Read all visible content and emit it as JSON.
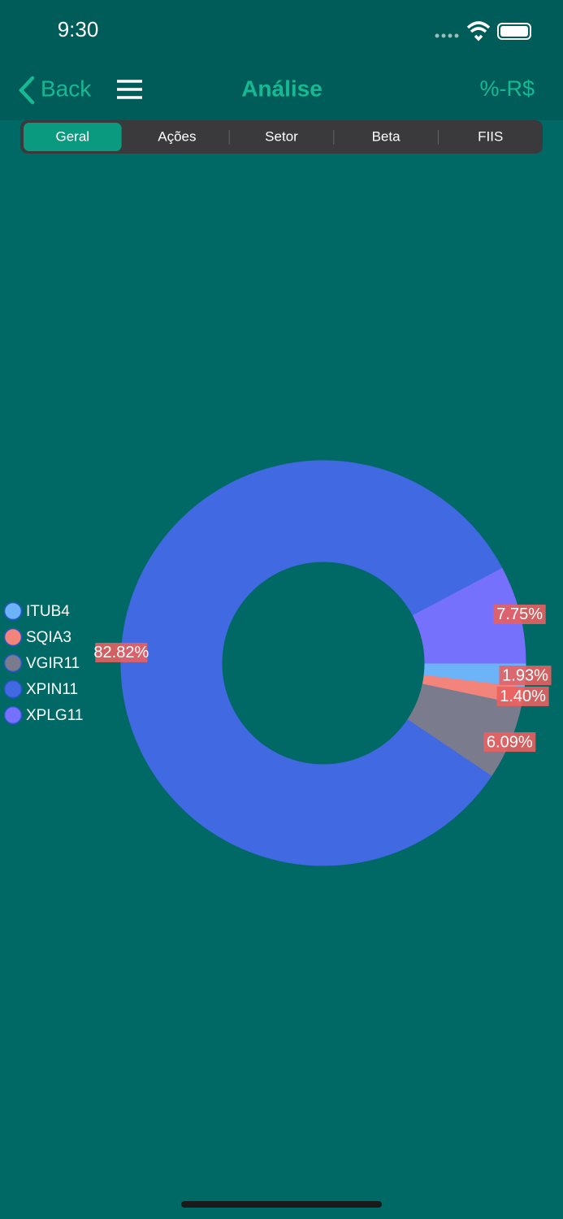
{
  "status_bar": {
    "time": "9:30"
  },
  "nav_bar": {
    "back": "Back",
    "title": "Análise",
    "toggle": "%-R$"
  },
  "segmented_control": {
    "items": [
      "Geral",
      "Ações",
      "Setor",
      "Beta",
      "FIIS"
    ],
    "selected": 0
  },
  "chart_data": {
    "type": "donut",
    "categories": [
      "ITUB4",
      "SQIA3",
      "VGIR11",
      "XPIN11",
      "XPLG11"
    ],
    "values": [
      1.93,
      1.4,
      6.09,
      82.82,
      7.75
    ],
    "value_labels": [
      "1.93%",
      "1.40%",
      "6.09%",
      "82.82%",
      "7.75%"
    ],
    "colors": [
      "#6cb3f8",
      "#f3847c",
      "#7b7b8e",
      "#4169e1",
      "#7571fd"
    ],
    "legend": "left"
  }
}
